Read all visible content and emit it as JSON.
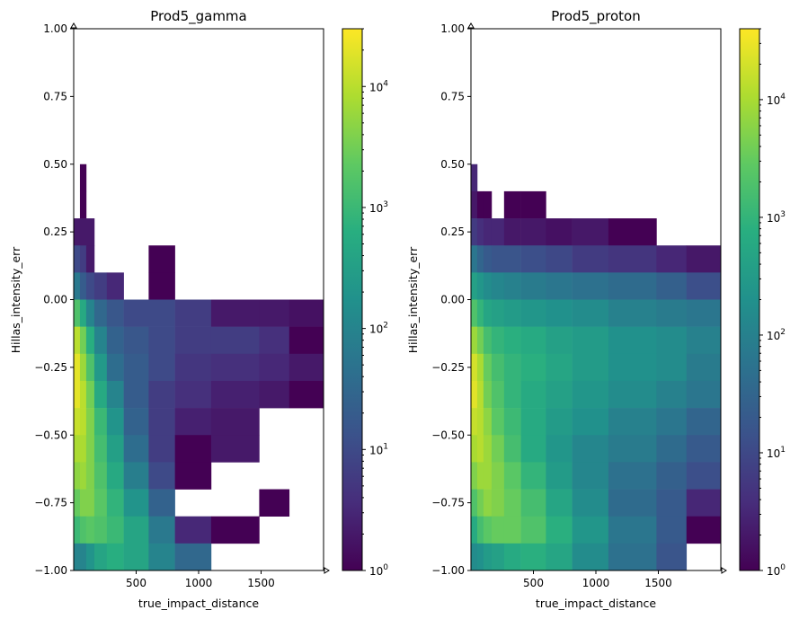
{
  "chart_data": [
    {
      "type": "heatmap",
      "title": "Prod5_gamma",
      "xlabel": "true_impact_distance",
      "ylabel": "Hillas_intensity_err",
      "xlim": [
        0,
        2000
      ],
      "ylim": [
        -1.0,
        1.0
      ],
      "xticks": [
        "500",
        "1000",
        "1500"
      ],
      "xtick_values": [
        500,
        1000,
        1500
      ],
      "yticks": [
        "−1.00",
        "−0.75",
        "−0.50",
        "−0.25",
        "0.00",
        "0.25",
        "0.50",
        "0.75",
        "1.00"
      ],
      "ytick_values": [
        -1,
        -0.75,
        -0.5,
        -0.25,
        0,
        0.25,
        0.5,
        0.75,
        1
      ],
      "colorscale": "viridis",
      "color_scale_type": "log",
      "color_range": [
        1,
        30000
      ],
      "colorbar_ticks": [
        1,
        10,
        100,
        1000,
        10000
      ],
      "colorbar_exponents": [
        "0",
        "1",
        "2",
        "3",
        "4"
      ],
      "x_bin_edges": [
        0,
        50,
        100,
        165,
        265,
        400,
        600,
        810,
        1100,
        1485,
        1725,
        2000
      ],
      "y_bin_edges_top_to_bottom": [
        1.0,
        0.9,
        0.8,
        0.7,
        0.6,
        0.5,
        0.4,
        0.3,
        0.2,
        0.1,
        0.0,
        -0.1,
        -0.2,
        -0.3,
        -0.4,
        -0.5,
        -0.6,
        -0.7,
        -0.8,
        -0.9,
        -1.0
      ],
      "log10_counts": [
        [
          null,
          null,
          null,
          null,
          null,
          null,
          null,
          null,
          null,
          null,
          null
        ],
        [
          null,
          null,
          null,
          null,
          null,
          null,
          null,
          null,
          null,
          null,
          null
        ],
        [
          null,
          null,
          null,
          null,
          null,
          null,
          null,
          null,
          null,
          null,
          null
        ],
        [
          null,
          null,
          null,
          null,
          null,
          null,
          null,
          null,
          null,
          null,
          null
        ],
        [
          null,
          null,
          null,
          null,
          null,
          null,
          null,
          null,
          null,
          null,
          null
        ],
        [
          null,
          0,
          null,
          null,
          null,
          null,
          null,
          null,
          null,
          null,
          null
        ],
        [
          null,
          0,
          null,
          null,
          null,
          null,
          null,
          null,
          null,
          null,
          null
        ],
        [
          0.3,
          0.3,
          0.3,
          null,
          null,
          null,
          null,
          null,
          null,
          null,
          null
        ],
        [
          1.0,
          0.8,
          0.3,
          null,
          null,
          null,
          0,
          null,
          null,
          null,
          null
        ],
        [
          1.8,
          1.3,
          1.0,
          0.8,
          0.5,
          null,
          0,
          null,
          null,
          null,
          null
        ],
        [
          3.2,
          2.7,
          2.0,
          1.5,
          1.2,
          1.0,
          1.0,
          0.8,
          0.3,
          0.3,
          0.2
        ],
        [
          4.0,
          3.5,
          2.8,
          2.0,
          1.4,
          1.2,
          1.0,
          0.8,
          0.8,
          0.6,
          0
        ],
        [
          4.3,
          3.8,
          3.2,
          2.4,
          1.6,
          1.3,
          1.0,
          0.7,
          0.6,
          0.5,
          0.3
        ],
        [
          4.3,
          4.0,
          3.5,
          2.7,
          2.0,
          1.3,
          0.8,
          0.6,
          0.4,
          0.3,
          0
        ],
        [
          4.1,
          4.0,
          3.6,
          3.0,
          2.3,
          1.4,
          0.8,
          0.4,
          0.3,
          null,
          null
        ],
        [
          3.9,
          3.9,
          3.6,
          3.1,
          2.5,
          1.6,
          0.8,
          0,
          0.3,
          null,
          null
        ],
        [
          3.7,
          3.8,
          3.6,
          3.2,
          2.7,
          1.9,
          1.0,
          0,
          null,
          null,
          null
        ],
        [
          3.4,
          3.6,
          3.6,
          3.3,
          2.9,
          2.3,
          1.4,
          null,
          null,
          0,
          null
        ],
        [
          3.0,
          3.2,
          3.3,
          3.2,
          3.0,
          2.6,
          1.8,
          0.5,
          0,
          null,
          null
        ],
        [
          2.0,
          2.0,
          2.3,
          2.6,
          2.8,
          2.6,
          2.0,
          1.5,
          null,
          null,
          null
        ]
      ]
    },
    {
      "type": "heatmap",
      "title": "Prod5_proton",
      "xlabel": "true_impact_distance",
      "ylabel": "Hillas_intensity_err",
      "xlim": [
        0,
        2000
      ],
      "ylim": [
        -1.0,
        1.0
      ],
      "xticks": [
        "500",
        "1000",
        "1500"
      ],
      "xtick_values": [
        500,
        1000,
        1500
      ],
      "yticks": [
        "−1.00",
        "−0.75",
        "−0.50",
        "−0.25",
        "0.00",
        "0.25",
        "0.50",
        "0.75",
        "1.00"
      ],
      "ytick_values": [
        -1,
        -0.75,
        -0.5,
        -0.25,
        0,
        0.25,
        0.5,
        0.75,
        1
      ],
      "colorscale": "viridis",
      "color_scale_type": "log",
      "color_range": [
        1,
        40000
      ],
      "colorbar_ticks": [
        1,
        10,
        100,
        1000,
        10000
      ],
      "colorbar_exponents": [
        "0",
        "1",
        "2",
        "3",
        "4"
      ],
      "x_bin_edges": [
        0,
        50,
        100,
        165,
        265,
        400,
        600,
        810,
        1100,
        1485,
        1725,
        2000
      ],
      "y_bin_edges_top_to_bottom": [
        1.0,
        0.9,
        0.8,
        0.7,
        0.6,
        0.5,
        0.4,
        0.3,
        0.2,
        0.1,
        0.0,
        -0.1,
        -0.2,
        -0.3,
        -0.4,
        -0.5,
        -0.6,
        -0.7,
        -0.8,
        -0.9,
        -1.0
      ],
      "log10_counts": [
        [
          null,
          null,
          null,
          null,
          null,
          null,
          null,
          null,
          null,
          null,
          null
        ],
        [
          null,
          null,
          null,
          null,
          null,
          null,
          null,
          null,
          null,
          null,
          null
        ],
        [
          null,
          null,
          null,
          null,
          null,
          null,
          null,
          null,
          null,
          null,
          null
        ],
        [
          null,
          null,
          null,
          null,
          null,
          null,
          null,
          null,
          null,
          null,
          null
        ],
        [
          null,
          null,
          null,
          null,
          null,
          null,
          null,
          null,
          null,
          null,
          null
        ],
        [
          0.5,
          null,
          null,
          null,
          null,
          null,
          null,
          null,
          null,
          null,
          null
        ],
        [
          0.3,
          0,
          0,
          null,
          0,
          0,
          null,
          null,
          null,
          null,
          null
        ],
        [
          0.8,
          0.6,
          0.5,
          0.5,
          0.3,
          0.3,
          0.2,
          0.3,
          0,
          null,
          null
        ],
        [
          1.8,
          1.5,
          1.3,
          1.2,
          1.2,
          1.1,
          1.0,
          0.8,
          0.7,
          0.5,
          0.3
        ],
        [
          2.6,
          2.4,
          2.2,
          2.1,
          2.0,
          1.9,
          1.8,
          1.7,
          1.6,
          1.4,
          1.1
        ],
        [
          3.3,
          3.0,
          2.7,
          2.6,
          2.5,
          2.4,
          2.3,
          2.2,
          2.0,
          1.9,
          1.8
        ],
        [
          3.9,
          3.6,
          3.2,
          3.0,
          2.9,
          2.8,
          2.6,
          2.5,
          2.3,
          2.2,
          2.0
        ],
        [
          4.3,
          4.0,
          3.5,
          3.2,
          3.0,
          2.9,
          2.7,
          2.5,
          2.3,
          2.2,
          1.9
        ],
        [
          4.4,
          4.1,
          3.6,
          3.3,
          3.0,
          2.8,
          2.6,
          2.4,
          2.2,
          2.0,
          1.8
        ],
        [
          4.2,
          4.1,
          3.8,
          3.4,
          3.1,
          2.8,
          2.5,
          2.3,
          2.0,
          1.8,
          1.5
        ],
        [
          4.0,
          4.1,
          3.9,
          3.6,
          3.2,
          2.8,
          2.4,
          2.1,
          1.9,
          1.6,
          1.3
        ],
        [
          3.7,
          3.9,
          3.9,
          3.7,
          3.4,
          3.0,
          2.5,
          2.1,
          1.7,
          1.4,
          1.1
        ],
        [
          3.3,
          3.6,
          3.8,
          3.7,
          3.5,
          3.2,
          2.7,
          2.2,
          1.6,
          1.3,
          0.5
        ],
        [
          2.8,
          3.2,
          3.4,
          3.5,
          3.5,
          3.3,
          2.9,
          2.4,
          1.8,
          1.3,
          0
        ],
        [
          2.2,
          2.3,
          2.5,
          2.6,
          2.8,
          2.9,
          2.7,
          2.2,
          1.7,
          1.2,
          null
        ]
      ]
    }
  ]
}
